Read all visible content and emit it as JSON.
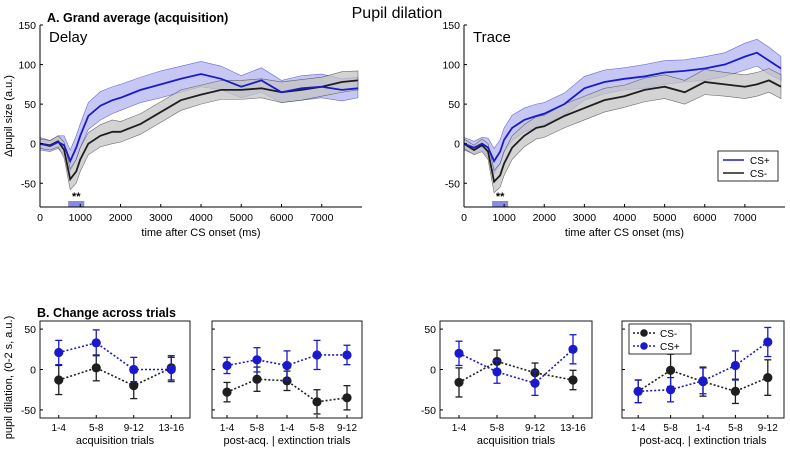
{
  "figure": {
    "title": "Pupil dilation",
    "section_a_title": "A. Grand average (acquisition)",
    "section_b_title": "B. Change across trials",
    "colors": {
      "cs_plus": "#1a1acc",
      "cs_plus_band": "#b4b4f0",
      "cs_minus": "#1e1e1e",
      "cs_minus_band": "#c4c4c4",
      "marker": "#8a8ae0"
    }
  },
  "chart_data": [
    {
      "id": "delay",
      "type": "line",
      "title": "Delay",
      "xlabel": "time after CS onset (ms)",
      "ylabel": "Δpupil size (a.u.)",
      "xlim": [
        0,
        8000
      ],
      "ylim": [
        -80,
        150
      ],
      "xticks": [
        0,
        1000,
        2000,
        3000,
        4000,
        5000,
        6000,
        7000
      ],
      "yticks": [
        -50,
        0,
        50,
        100,
        150
      ],
      "significance": {
        "label": "**",
        "x_start": 700,
        "x_end": 1100
      },
      "x": [
        0,
        250,
        450,
        600,
        750,
        900,
        1000,
        1200,
        1500,
        1800,
        2000,
        2500,
        3000,
        3500,
        4000,
        4500,
        5000,
        5500,
        6000,
        6500,
        7000,
        7500,
        7900
      ],
      "series": [
        {
          "name": "CS+",
          "color": "#1a1acc",
          "band": "#b4b4f0",
          "values": [
            0,
            -3,
            2,
            -2,
            -22,
            -5,
            10,
            35,
            48,
            55,
            58,
            68,
            75,
            82,
            88,
            82,
            72,
            80,
            65,
            70,
            72,
            68,
            70
          ],
          "lower": [
            -8,
            -10,
            -6,
            -14,
            -35,
            -20,
            -5,
            18,
            30,
            38,
            42,
            52,
            58,
            65,
            72,
            68,
            58,
            65,
            52,
            55,
            58,
            54,
            58
          ],
          "upper": [
            8,
            4,
            10,
            10,
            -8,
            10,
            25,
            52,
            66,
            72,
            75,
            84,
            92,
            98,
            104,
            98,
            86,
            96,
            80,
            86,
            88,
            82,
            84
          ]
        },
        {
          "name": "CS-",
          "color": "#1e1e1e",
          "band": "#c4c4c4",
          "values": [
            0,
            -2,
            3,
            -8,
            -45,
            -35,
            -20,
            0,
            10,
            15,
            15,
            25,
            40,
            55,
            62,
            68,
            68,
            70,
            65,
            68,
            72,
            78,
            80
          ],
          "lower": [
            -6,
            -8,
            -4,
            -18,
            -58,
            -50,
            -35,
            -14,
            -4,
            0,
            2,
            12,
            27,
            42,
            50,
            56,
            56,
            58,
            52,
            55,
            60,
            65,
            68
          ],
          "upper": [
            6,
            4,
            10,
            2,
            -32,
            -20,
            -5,
            14,
            24,
            30,
            28,
            38,
            53,
            68,
            74,
            80,
            80,
            82,
            78,
            81,
            84,
            91,
            92
          ]
        }
      ]
    },
    {
      "id": "trace",
      "type": "line",
      "title": "Trace",
      "xlabel": "time after CS onset (ms)",
      "xlim": [
        0,
        8000
      ],
      "ylim": [
        -80,
        150
      ],
      "xticks": [
        0,
        1000,
        2000,
        3000,
        4000,
        5000,
        6000,
        7000
      ],
      "yticks": [
        -50,
        0,
        50,
        100,
        150
      ],
      "legend": [
        "CS+",
        "CS-"
      ],
      "legend_position": "right",
      "significance": {
        "label": "**",
        "x_start": 700,
        "x_end": 1100
      },
      "x": [
        0,
        250,
        450,
        600,
        750,
        900,
        1000,
        1200,
        1500,
        1800,
        2000,
        2500,
        3000,
        3500,
        4000,
        4500,
        5000,
        5500,
        6000,
        6500,
        7000,
        7300,
        7600,
        7900
      ],
      "series": [
        {
          "name": "CS+",
          "color": "#1a1acc",
          "band": "#b4b4f0",
          "values": [
            0,
            -5,
            0,
            -5,
            -22,
            -10,
            5,
            20,
            30,
            35,
            38,
            50,
            70,
            78,
            82,
            85,
            90,
            92,
            95,
            100,
            110,
            115,
            105,
            95
          ],
          "lower": [
            -8,
            -13,
            -8,
            -17,
            -38,
            -25,
            -10,
            4,
            15,
            20,
            24,
            36,
            55,
            63,
            68,
            70,
            75,
            78,
            80,
            85,
            93,
            98,
            88,
            80
          ],
          "upper": [
            8,
            3,
            8,
            7,
            -6,
            5,
            20,
            36,
            45,
            50,
            52,
            64,
            85,
            93,
            96,
            100,
            105,
            106,
            110,
            115,
            127,
            132,
            122,
            110
          ]
        },
        {
          "name": "CS-",
          "color": "#1e1e1e",
          "band": "#c4c4c4",
          "values": [
            0,
            -8,
            -2,
            -10,
            -48,
            -40,
            -25,
            -5,
            10,
            20,
            22,
            35,
            45,
            55,
            60,
            68,
            72,
            65,
            78,
            75,
            72,
            75,
            80,
            72
          ],
          "lower": [
            -6,
            -14,
            -10,
            -20,
            -62,
            -55,
            -40,
            -20,
            -4,
            6,
            8,
            20,
            30,
            40,
            46,
            53,
            57,
            50,
            62,
            60,
            57,
            60,
            65,
            57
          ],
          "upper": [
            6,
            -2,
            6,
            0,
            -34,
            -25,
            -10,
            10,
            24,
            34,
            36,
            50,
            60,
            70,
            74,
            83,
            87,
            80,
            94,
            90,
            87,
            90,
            95,
            87
          ]
        }
      ]
    },
    {
      "id": "delay_acq",
      "type": "scatter",
      "ylabel": "pupil dilation, (0-2 s, a.u.)",
      "xlabel": "acquisition trials",
      "categories": [
        "1-4",
        "5-8",
        "9-12",
        "13-16"
      ],
      "ylim": [
        -60,
        60
      ],
      "yticks": [
        -50,
        0,
        50
      ],
      "series": [
        {
          "name": "CS+",
          "color": "#1a1acc",
          "values": [
            21,
            33,
            0,
            0
          ],
          "errors": [
            15,
            16,
            15,
            15
          ]
        },
        {
          "name": "CS-",
          "color": "#1e1e1e",
          "values": [
            -13,
            2,
            -20,
            2
          ],
          "errors": [
            18,
            16,
            16,
            15
          ]
        }
      ]
    },
    {
      "id": "delay_ext",
      "type": "scatter",
      "xlabel": "post-acq. |     extinction trials",
      "categories": [
        "1-4",
        "5-8",
        "1-4",
        "5-8",
        "9-12"
      ],
      "ylim": [
        -60,
        60
      ],
      "yticks": [
        -50,
        0,
        50
      ],
      "series": [
        {
          "name": "CS+",
          "color": "#1a1acc",
          "values": [
            5,
            12,
            5,
            18,
            18
          ],
          "errors": [
            10,
            15,
            18,
            18,
            12
          ]
        },
        {
          "name": "CS-",
          "color": "#1e1e1e",
          "values": [
            -28,
            -12,
            -14,
            -40,
            -35
          ],
          "errors": [
            12,
            15,
            12,
            15,
            15
          ]
        }
      ]
    },
    {
      "id": "trace_acq",
      "type": "scatter",
      "xlabel": "acquisition trials",
      "categories": [
        "1-4",
        "5-8",
        "9-12",
        "13-16"
      ],
      "ylim": [
        -60,
        60
      ],
      "yticks": [
        -50,
        0,
        50
      ],
      "series": [
        {
          "name": "CS+",
          "color": "#1a1acc",
          "values": [
            20,
            -3,
            -17,
            25
          ],
          "errors": [
            15,
            14,
            15,
            18
          ]
        },
        {
          "name": "CS-",
          "color": "#1e1e1e",
          "values": [
            -16,
            10,
            -4,
            -13
          ],
          "errors": [
            18,
            14,
            12,
            12
          ]
        }
      ]
    },
    {
      "id": "trace_ext",
      "type": "scatter",
      "xlabel": "post-acq. |     extinction trials",
      "categories": [
        "1-4",
        "5-8",
        "1-4",
        "5-8",
        "9-12"
      ],
      "ylim": [
        -60,
        60
      ],
      "yticks": [
        -50,
        0,
        50
      ],
      "legend": [
        "CS-",
        "CS+"
      ],
      "legend_position": "top-left",
      "series": [
        {
          "name": "CS+",
          "color": "#1a1acc",
          "values": [
            -27,
            -25,
            -14,
            5,
            34
          ],
          "errors": [
            14,
            15,
            16,
            18,
            18
          ]
        },
        {
          "name": "CS-",
          "color": "#1e1e1e",
          "values": [
            -27,
            -1,
            -15,
            -27,
            -10
          ],
          "errors": [
            14,
            20,
            18,
            15,
            22
          ]
        }
      ]
    }
  ]
}
